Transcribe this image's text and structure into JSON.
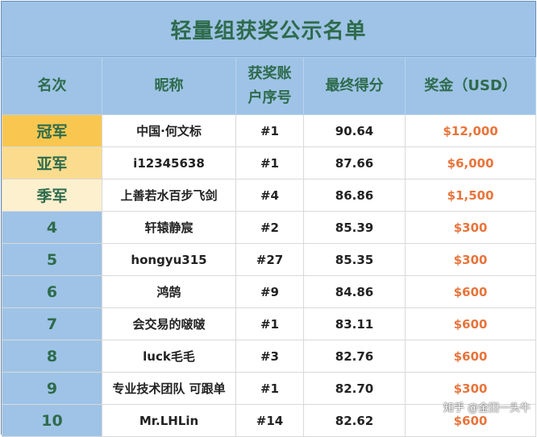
{
  "title": "轻量组获奖公示名单",
  "headers": {
    "rank": "名次",
    "nickname": "昵称",
    "account_line1": "获奖账",
    "account_line2": "户序号",
    "score": "最终得分",
    "prize": "奖金（USD）"
  },
  "rows": [
    {
      "rank": "冠军",
      "nickname": "中国·何文标",
      "account": "#1",
      "score": "90.64",
      "prize": "$12,000"
    },
    {
      "rank": "亚军",
      "nickname": "i12345638",
      "account": "#1",
      "score": "87.66",
      "prize": "$6,000"
    },
    {
      "rank": "季军",
      "nickname": "上善若水百步飞剑",
      "account": "#4",
      "score": "86.86",
      "prize": "$1,500"
    },
    {
      "rank": "4",
      "nickname": "轩辕静宸",
      "account": "#2",
      "score": "85.39",
      "prize": "$300"
    },
    {
      "rank": "5",
      "nickname": "hongyu315",
      "account": "#27",
      "score": "85.35",
      "prize": "$300"
    },
    {
      "rank": "6",
      "nickname": "鸿鹄",
      "account": "#9",
      "score": "84.86",
      "prize": "$600"
    },
    {
      "rank": "7",
      "nickname": "会交易的啵啵",
      "account": "#1",
      "score": "83.11",
      "prize": "$600"
    },
    {
      "rank": "8",
      "nickname": "luck毛毛",
      "account": "#3",
      "score": "82.76",
      "prize": "$600"
    },
    {
      "rank": "9",
      "nickname": "专业技术团队 可跟单",
      "account": "#1",
      "score": "82.70",
      "prize": "$300"
    },
    {
      "rank": "10",
      "nickname": "Mr.LHLin",
      "account": "#14",
      "score": "82.62",
      "prize": "$600"
    }
  ],
  "watermark": "知乎 @金田一头牛",
  "colors": {
    "header_bg": "#9ec3e6",
    "header_text": "#2e6b4c",
    "gold": "#f9c74f",
    "silver": "#fbdc8e",
    "bronze": "#fdf0cf",
    "prize_text": "#e8743b"
  }
}
